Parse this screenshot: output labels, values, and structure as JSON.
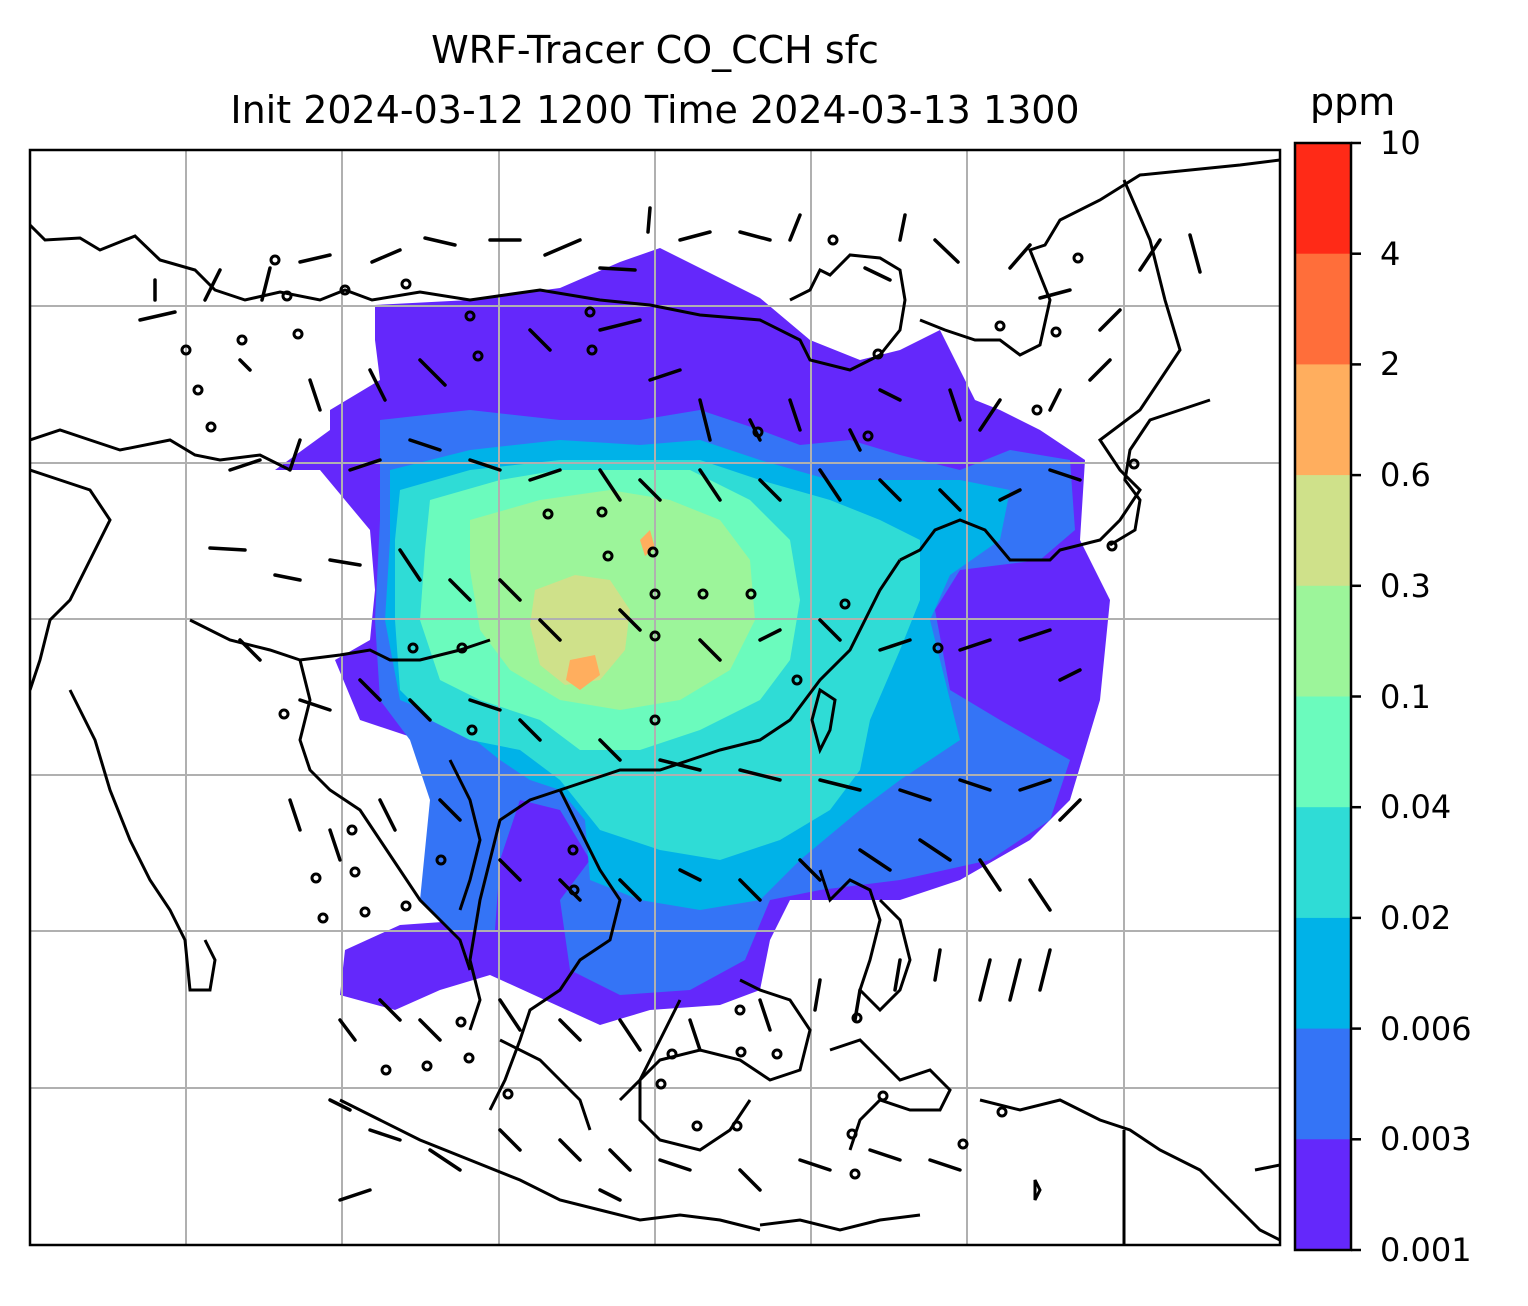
{
  "title": {
    "line1": "WRF-Tracer CO_CCH sfc",
    "line2": "Init 2024-03-12 1200 Time 2024-03-13 1300"
  },
  "colorbar": {
    "unit": "ppm",
    "ticks": [
      "10",
      "4",
      "2",
      "0.6",
      "0.3",
      "0.1",
      "0.04",
      "0.02",
      "0.006",
      "0.003",
      "0.001"
    ],
    "colors": [
      "#ff2a17",
      "#ff6e3a",
      "#ffae5e",
      "#cfe18a",
      "#9cf59a",
      "#6bfbbd",
      "#2fdcd6",
      "#00b2e8",
      "#3474f6",
      "#6428fb"
    ]
  },
  "map": {
    "gridlines": true,
    "features": [
      "coastlines",
      "country-borders",
      "wind-barbs",
      "co-tracer-concentration"
    ]
  }
}
